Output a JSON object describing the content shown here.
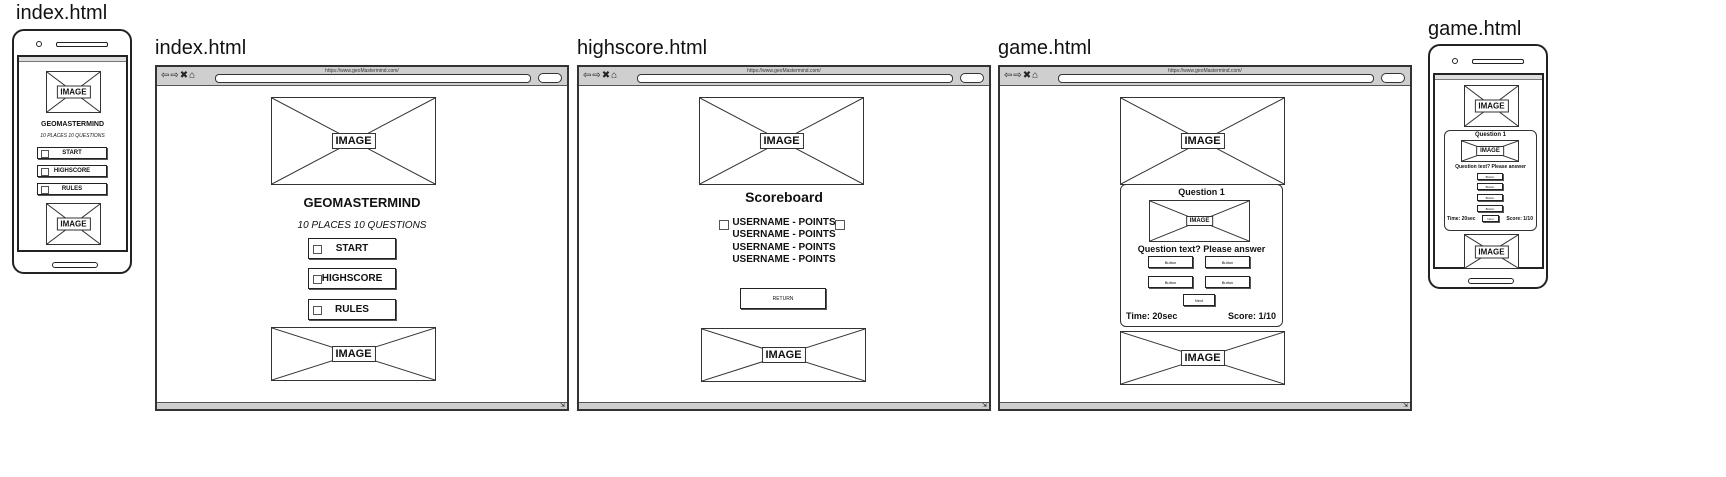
{
  "placeholder": {
    "image": "IMAGE",
    "url": "https://www.geoMastermind.com/"
  },
  "frames": {
    "mobile_index": {
      "title": "index.html"
    },
    "desktop_index": {
      "title": "index.html"
    },
    "desktop_highscore": {
      "title": "highscore.html"
    },
    "desktop_game": {
      "title": "game.html"
    },
    "mobile_game": {
      "title": "game.html"
    }
  },
  "index": {
    "heading": "GEOMASTERMIND",
    "subheading": "10 PLACES 10 QUESTIONS",
    "buttons": [
      "START",
      "HIGHSCORE",
      "RULES"
    ]
  },
  "highscore": {
    "heading": "Scoreboard",
    "entries": [
      "USERNAME - POINTS",
      "USERNAME - POINTS",
      "USERNAME - POINTS",
      "USERNAME - POINTS"
    ],
    "return_label": "RETURN"
  },
  "game": {
    "question_title": "Question 1",
    "question_text": "Question text? Please answer",
    "answer_buttons": [
      "Button",
      "Button",
      "Button",
      "Button"
    ],
    "next_label": "Next",
    "time": "Time: 20sec",
    "score": "Score: 1/10"
  }
}
